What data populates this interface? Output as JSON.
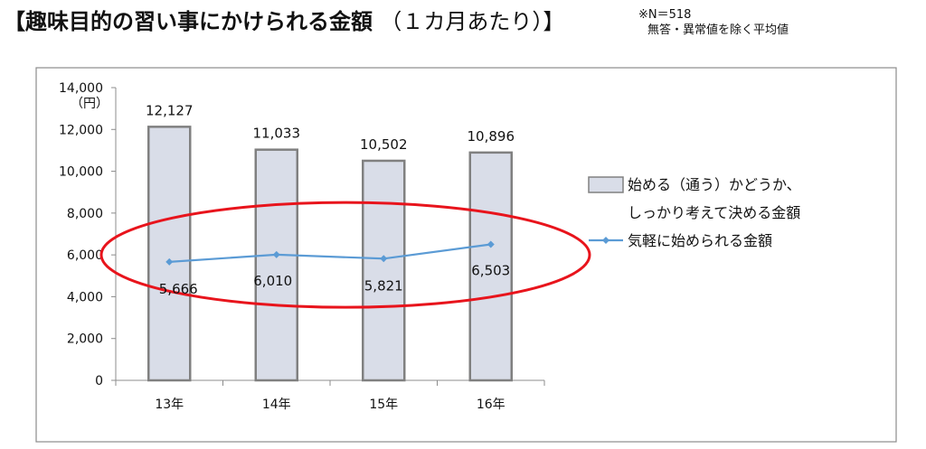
{
  "page": {
    "title_main": "【趣味目的の習い事にかけられる金額",
    "title_sub": "（１カ月あたり）】",
    "note_line1": "※N＝518",
    "note_line2": "無答・異常値を除く平均値"
  },
  "chart_data": {
    "type": "bar",
    "categories": [
      "13年",
      "14年",
      "15年",
      "16年"
    ],
    "ylabel": "（円）",
    "ylim": [
      0,
      14000
    ],
    "yticks": [
      0,
      2000,
      4000,
      6000,
      8000,
      10000,
      12000,
      14000
    ],
    "ytick_labels": [
      "0",
      "2,000",
      "4,000",
      "6,000",
      "8,000",
      "10,000",
      "12,000",
      "14,000"
    ],
    "grid": false,
    "legend_position": "right",
    "series": [
      {
        "name": "始める（通う）かどうか、しっかり考えて決める金額",
        "name_line1": "始める（通う）かどうか、",
        "name_line2": "しっかり考えて決める金額",
        "kind": "bar",
        "values": [
          12127,
          11033,
          10502,
          10896
        ],
        "labels": [
          "12,127",
          "11,033",
          "10,502",
          "10,896"
        ],
        "color": "#d9dde8",
        "edge_color": "#808080"
      },
      {
        "name": "気軽に始められる金額",
        "kind": "line",
        "values": [
          5666,
          6010,
          5821,
          6503
        ],
        "labels": [
          "5,666",
          "6,010",
          "5,821",
          "6,503"
        ],
        "color": "#5b9bd5"
      }
    ],
    "annotations": [
      {
        "type": "ellipse",
        "color": "#e8141c",
        "target": "line series"
      }
    ]
  }
}
